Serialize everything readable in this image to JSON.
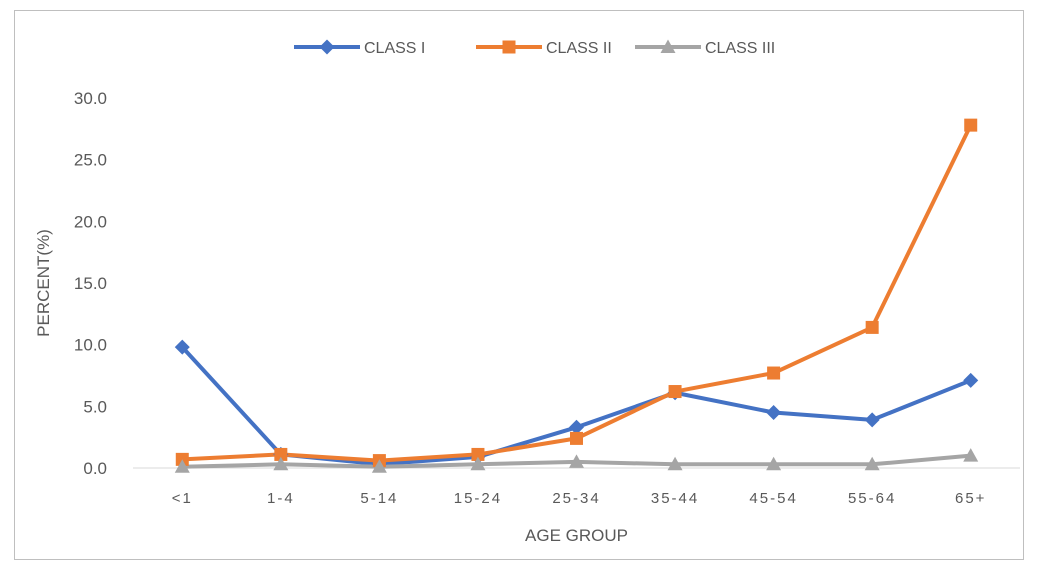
{
  "chart_data": {
    "type": "line",
    "xlabel": "AGE GROUP",
    "ylabel": "PERCENT(%)",
    "ylim": [
      0,
      30
    ],
    "yticks": [
      "0.0",
      "5.0",
      "10.0",
      "15.0",
      "20.0",
      "25.0",
      "30.0"
    ],
    "grid": false,
    "legend_position": "top",
    "categories": [
      "<1",
      "1-4",
      "5-14",
      "15-24",
      "25-34",
      "35-44",
      "45-54",
      "55-64",
      "65+"
    ],
    "series": [
      {
        "name": "CLASS I",
        "color": "#4472c4",
        "marker": "diamond",
        "values": [
          9.8,
          1.1,
          0.3,
          0.9,
          3.3,
          6.1,
          4.5,
          3.9,
          7.1
        ]
      },
      {
        "name": "CLASS II",
        "color": "#ed7d31",
        "marker": "square",
        "values": [
          0.7,
          1.1,
          0.6,
          1.1,
          2.4,
          6.2,
          7.7,
          11.4,
          27.8
        ]
      },
      {
        "name": "CLASS III",
        "color": "#a5a5a5",
        "marker": "triangle",
        "values": [
          0.1,
          0.3,
          0.1,
          0.3,
          0.5,
          0.3,
          0.3,
          0.3,
          1.0
        ]
      }
    ]
  }
}
